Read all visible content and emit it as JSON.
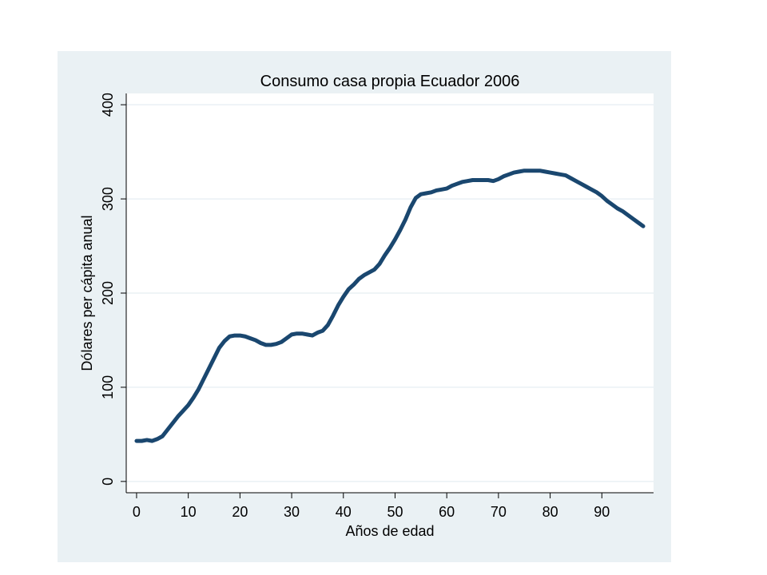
{
  "chart_data": {
    "type": "line",
    "title": "Consumo casa propia Ecuador 2006",
    "xlabel": "Años de edad",
    "ylabel": "Dólares per cápita anual",
    "xlim": [
      -2,
      100
    ],
    "ylim": [
      -12,
      412
    ],
    "xticks": [
      0,
      10,
      20,
      30,
      40,
      50,
      60,
      70,
      80,
      90
    ],
    "yticks": [
      0,
      100,
      200,
      300,
      400
    ],
    "grid": true,
    "colors": {
      "outer_background": "#eaf1f4",
      "plot_background": "#ffffff",
      "gridline": "#eaf1f4",
      "line": "#1a476f"
    },
    "series": [
      {
        "x": [
          0,
          1,
          2,
          3,
          4,
          5,
          6,
          7,
          8,
          9,
          10,
          11,
          12,
          13,
          14,
          15,
          16,
          17,
          18,
          19,
          20,
          21,
          22,
          23,
          24,
          25,
          26,
          27,
          28,
          29,
          30,
          31,
          32,
          33,
          34,
          35,
          36,
          37,
          38,
          39,
          40,
          41,
          42,
          43,
          44,
          45,
          46,
          47,
          48,
          49,
          50,
          51,
          52,
          53,
          54,
          55,
          56,
          57,
          58,
          59,
          60,
          61,
          62,
          63,
          64,
          65,
          66,
          67,
          68,
          69,
          70,
          71,
          72,
          73,
          74,
          75,
          76,
          77,
          78,
          79,
          80,
          81,
          82,
          83,
          84,
          85,
          86,
          87,
          88,
          89,
          90,
          91,
          92,
          93,
          94,
          95,
          96,
          97,
          98
        ],
        "y": [
          43,
          43,
          44,
          43,
          45,
          48,
          55,
          62,
          69,
          75,
          81,
          89,
          98,
          109,
          120,
          131,
          142,
          149,
          154,
          155,
          155,
          154,
          152,
          150,
          147,
          145,
          145,
          146,
          148,
          152,
          156,
          157,
          157,
          156,
          155,
          158,
          160,
          166,
          176,
          187,
          196,
          204,
          209,
          215,
          219,
          222,
          225,
          231,
          240,
          248,
          257,
          267,
          278,
          291,
          301,
          305,
          306,
          307,
          309,
          310,
          311,
          314,
          316,
          318,
          319,
          320,
          320,
          320,
          320,
          319,
          321,
          324,
          326,
          328,
          329,
          330,
          330,
          330,
          330,
          329,
          328,
          327,
          326,
          325,
          322,
          319,
          316,
          313,
          310,
          307,
          303,
          298,
          294,
          290,
          287,
          283,
          279,
          275,
          271
        ]
      }
    ]
  }
}
